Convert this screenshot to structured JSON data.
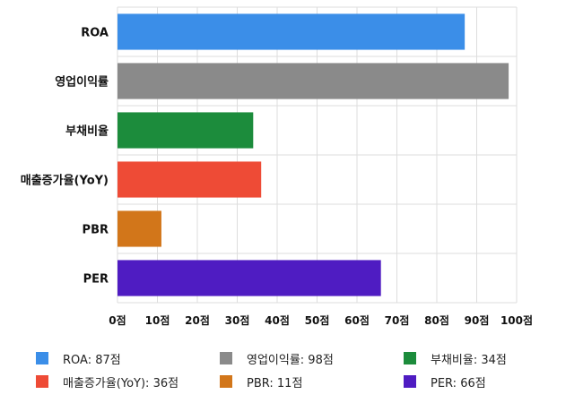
{
  "chart_data": {
    "type": "bar",
    "orientation": "horizontal",
    "categories": [
      "ROA",
      "영업이익률",
      "부채비율",
      "매출증가율(YoY)",
      "PBR",
      "PER"
    ],
    "values": [
      87,
      98,
      34,
      36,
      11,
      66
    ],
    "colors": [
      "#3b8ee8",
      "#8a8a8a",
      "#1c8c3c",
      "#ee4b36",
      "#d2761a",
      "#4f1cc2"
    ],
    "xlim": [
      0,
      100
    ],
    "x_ticks": [
      0,
      10,
      20,
      30,
      40,
      50,
      60,
      70,
      80,
      90,
      100
    ],
    "tick_suffix": "점",
    "grid": true,
    "legend_position": "bottom"
  },
  "legend": [
    {
      "label": "ROA: 87점",
      "color": "#3b8ee8"
    },
    {
      "label": "영업이익률: 98점",
      "color": "#8a8a8a"
    },
    {
      "label": "부채비율: 34점",
      "color": "#1c8c3c"
    },
    {
      "label": "매출증가율(YoY): 36점",
      "color": "#ee4b36"
    },
    {
      "label": "PBR: 11점",
      "color": "#d2761a"
    },
    {
      "label": "PER: 66점",
      "color": "#4f1cc2"
    }
  ]
}
